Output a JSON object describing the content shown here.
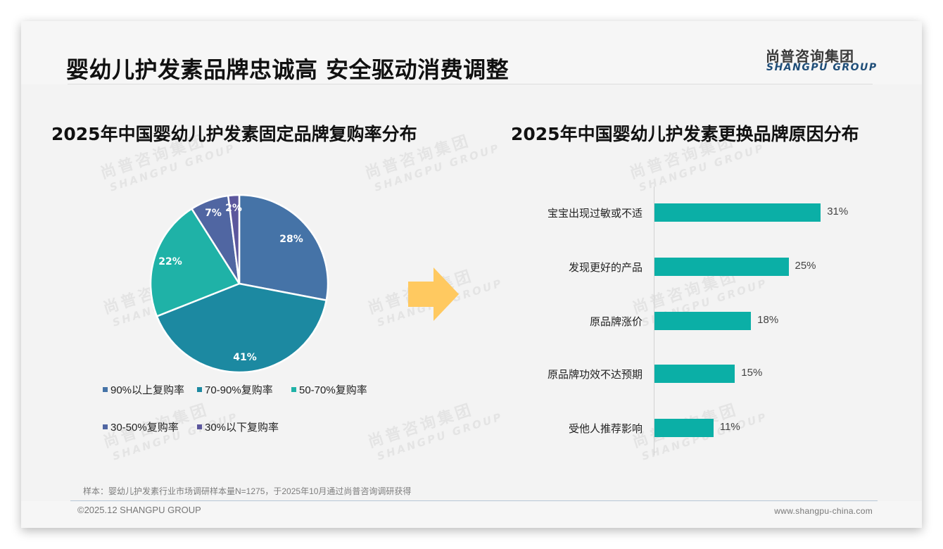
{
  "header": {
    "title": "婴幼儿护发素品牌忠诚高 安全驱动消费调整",
    "logo_cn": "尚普咨询集团",
    "logo_en": "SHANGPU GROUP"
  },
  "watermark": {
    "cn": "尚普咨询集团",
    "en": "SHANGPU GROUP"
  },
  "left_panel": {
    "title": "2025年中国婴幼儿护发素固定品牌复购率分布"
  },
  "right_panel": {
    "title": "2025年中国婴幼儿护发素更换品牌原因分布"
  },
  "colors": {
    "pie": [
      "#4573a7",
      "#1c89a1",
      "#1fb2a7",
      "#5066a2",
      "#5c579d"
    ],
    "bar": "#0bafa6",
    "arrow": "#ffc960"
  },
  "chart_data": [
    {
      "type": "pie",
      "title": "2025年中国婴幼儿护发素固定品牌复购率分布",
      "categories": [
        "90%以上复购率",
        "70-90%复购率",
        "50-70%复购率",
        "30-50%复购率",
        "30%以下复购率"
      ],
      "values": [
        28,
        41,
        22,
        7,
        2
      ],
      "labels": [
        "28%",
        "41%",
        "22%",
        "7%",
        "2%"
      ],
      "start_angle": "12 o'clock, clockwise",
      "legend_position": "bottom"
    },
    {
      "type": "bar",
      "orientation": "horizontal",
      "title": "2025年中国婴幼儿护发素更换品牌原因分布",
      "categories": [
        "宝宝出现过敏或不适",
        "发现更好的产品",
        "原品牌涨价",
        "原品牌功效不达预期",
        "受他人推荐影响"
      ],
      "values": [
        31,
        25,
        18,
        15,
        11
      ],
      "labels": [
        "31%",
        "25%",
        "18%",
        "15%",
        "11%"
      ],
      "xlabel": "",
      "ylabel": "",
      "grid": false
    }
  ],
  "footer": {
    "note": "样本：婴幼儿护发素行业市场调研样本量N=1275，于2025年10月通过尚普咨询调研获得",
    "copyright": "©2025.12 SHANGPU GROUP",
    "website": "www.shangpu-china.com"
  }
}
